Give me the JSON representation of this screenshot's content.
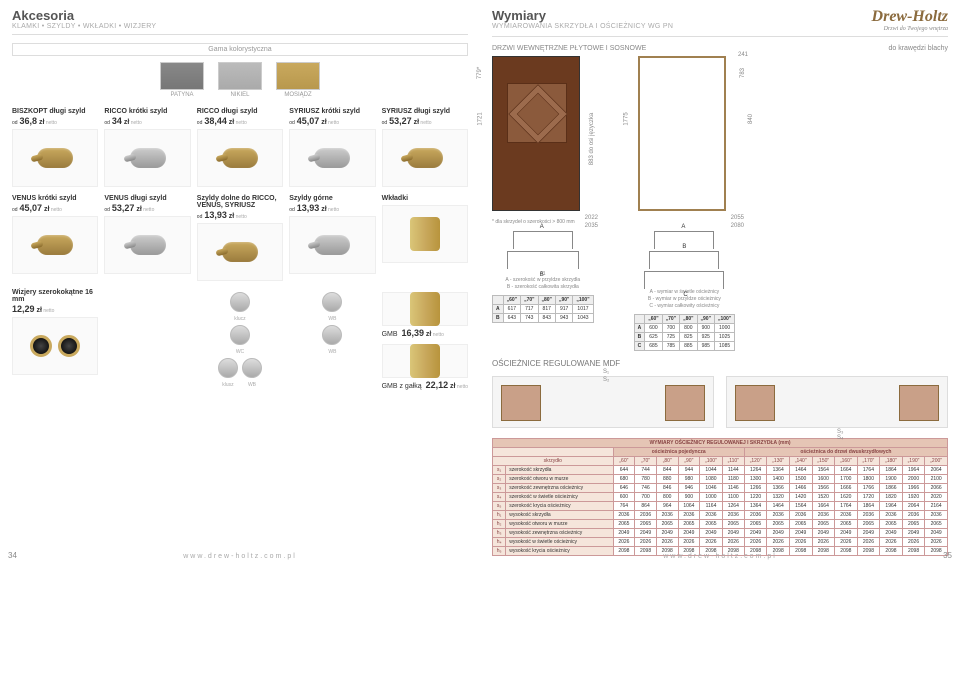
{
  "left": {
    "title": "Akcesoria",
    "sub": "KLAMKI • SZYLDY • WKŁADKI • WIZJERY",
    "gama": "Gama kolorystyczna",
    "swatches": [
      {
        "label": "PATYNA",
        "class": "patyna"
      },
      {
        "label": "NIKIEL",
        "class": "nikiel"
      },
      {
        "label": "MOSIĄDZ",
        "class": "mosiadz"
      }
    ],
    "products_row1": [
      {
        "name": "BISZKOPT długi szyld",
        "pre": "od",
        "val": "36,8",
        "curr": "zł"
      },
      {
        "name": "RICCO krótki szyld",
        "pre": "od",
        "val": "34",
        "curr": "zł"
      },
      {
        "name": "RICCO długi szyld",
        "pre": "od",
        "val": "38,44",
        "curr": "zł"
      },
      {
        "name": "SYRIUSZ krótki szyld",
        "pre": "od",
        "val": "45,07",
        "curr": "zł"
      },
      {
        "name": "SYRIUSZ długi szyld",
        "pre": "od",
        "val": "53,27",
        "curr": "zł"
      }
    ],
    "products_row2": [
      {
        "name": "VENUS krótki szyld",
        "pre": "od",
        "val": "45,07",
        "curr": "zł"
      },
      {
        "name": "VENUS długi szyld",
        "pre": "od",
        "val": "53,27",
        "curr": "zł"
      },
      {
        "name": "Szyldy dolne do RICCO, VENUS, SYRIUSZ",
        "pre": "od",
        "val": "13,93",
        "curr": "zł"
      },
      {
        "name": "Szyldy górne",
        "pre": "od",
        "val": "13,93",
        "curr": "zł"
      },
      {
        "name": "Wkładki",
        "pre": "",
        "val": "",
        "curr": ""
      }
    ],
    "mini_labels": {
      "klucz": "klucz",
      "wc": "WC",
      "wb": "WB",
      "klusz": "klusz"
    },
    "gmb": {
      "label": "GMB",
      "price": "16,39",
      "curr": "zł"
    },
    "gmbg": {
      "label": "GMB z gałką",
      "price": "22,12",
      "curr": "zł"
    },
    "wizjer": {
      "name": "Wizjery szerokokątne 16 mm",
      "price": "12,29",
      "curr": "zł"
    },
    "footer": "www.drew-holtz.com.pl",
    "pagenum": "34"
  },
  "right": {
    "title": "Wymiary",
    "sub": "WYMIAROWANIA SKRZYDŁA I OŚCIEŻNICY WG PN",
    "logo": {
      "big": "Drew-Holtz",
      "small": "Drzwi do Twojego wnętrza"
    },
    "drzwi_title": "DRZWI WEWNĘTRZNE PŁYTOWE I SOSNOWE",
    "krawedz": "do krawędzi blachy",
    "door_dims": {
      "h1": "1721",
      "h2": "779*",
      "h3": "883 do osi języczka",
      "w1": "2022",
      "w2": "2035"
    },
    "frame_dims": {
      "h1": "1775",
      "h2": "783",
      "h3": "241",
      "w1": "2055",
      "w2": "2080",
      "w3": "840"
    },
    "note": "* dla skrzydeł o szerokości > 800 mm",
    "ab_dim": "41",
    "legend_ab": [
      "A - szerokość w przyldze skrzydła",
      "B - szerokość całkowita skrzydła"
    ],
    "legend_abc": [
      "A - wymiar w świetle ościeżnicy",
      "B - wymiar w przyldze ościeżnicy",
      "C - wymiar całkowity ościeżnicy"
    ],
    "tbl_ab": {
      "cols": [
        "„60\"",
        "„70\"",
        "„80\"",
        "„90\"",
        "„100\""
      ],
      "rows": [
        {
          "lbl": "A",
          "vals": [
            "617",
            "717",
            "817",
            "917",
            "1017"
          ]
        },
        {
          "lbl": "B",
          "vals": [
            "643",
            "743",
            "843",
            "943",
            "1043"
          ]
        }
      ]
    },
    "tbl_abc": {
      "cols": [
        "„60\"",
        "„70\"",
        "„80\"",
        "„90\"",
        "„100\""
      ],
      "rows": [
        {
          "lbl": "A",
          "vals": [
            "600",
            "700",
            "800",
            "900",
            "1000"
          ]
        },
        {
          "lbl": "B",
          "vals": [
            "625",
            "725",
            "825",
            "925",
            "1025"
          ]
        },
        {
          "lbl": "C",
          "vals": [
            "685",
            "785",
            "885",
            "985",
            "1085"
          ]
        }
      ]
    },
    "mdf_title": "OŚCIEŻNICE REGULOWANE MDF",
    "mdf_s": [
      "S₁",
      "S₂",
      "S₃",
      "S₄"
    ],
    "big_table": {
      "title": "WYMIARY OŚCIEŻNICY REGULOWANEJ I SKRZYDŁA (mm)",
      "group1": "ościeżnica pojedyncza",
      "group2": "ościeżnica do drzwi dwuskrzydłowych",
      "head": [
        "skrzydło",
        "„60\"",
        "„70\"",
        "„80\"",
        "„90\"",
        "„100\"",
        "„110\"",
        "„120\"",
        "„130\"",
        "„140\"",
        "„150\"",
        "„160\"",
        "„170\"",
        "„180\"",
        "„190\"",
        "„200\""
      ],
      "rows": [
        {
          "k": "s₁",
          "lbl": "szerokość skrzydła",
          "vals": [
            "644",
            "744",
            "844",
            "944",
            "1044",
            "1144",
            "1264",
            "1364",
            "1464",
            "1564",
            "1664",
            "1764",
            "1864",
            "1964",
            "2064"
          ]
        },
        {
          "k": "s₂",
          "lbl": "szerokość otworu w murze",
          "vals": [
            "680",
            "780",
            "880",
            "980",
            "1080",
            "1180",
            "1300",
            "1400",
            "1500",
            "1600",
            "1700",
            "1800",
            "1900",
            "2000",
            "2100"
          ]
        },
        {
          "k": "s₃",
          "lbl": "szerokość zewnętrzna ościeżnicy",
          "vals": [
            "646",
            "746",
            "846",
            "946",
            "1046",
            "1146",
            "1266",
            "1366",
            "1466",
            "1566",
            "1666",
            "1766",
            "1866",
            "1966",
            "2066"
          ]
        },
        {
          "k": "s₄",
          "lbl": "szerokość w świetle ościeżnicy",
          "vals": [
            "600",
            "700",
            "800",
            "900",
            "1000",
            "1100",
            "1220",
            "1320",
            "1420",
            "1520",
            "1620",
            "1720",
            "1820",
            "1920",
            "2020"
          ]
        },
        {
          "k": "s₅",
          "lbl": "szerokość krycia ościeżnicy",
          "vals": [
            "764",
            "864",
            "964",
            "1064",
            "1164",
            "1264",
            "1364",
            "1464",
            "1564",
            "1664",
            "1764",
            "1864",
            "1964",
            "2064",
            "2164"
          ]
        },
        {
          "k": "h₁",
          "lbl": "wysokość skrzydła",
          "vals": [
            "2036",
            "2036",
            "2036",
            "2036",
            "2036",
            "2036",
            "2036",
            "2036",
            "2036",
            "2036",
            "2036",
            "2036",
            "2036",
            "2036",
            "2036"
          ]
        },
        {
          "k": "h₂",
          "lbl": "wysokość otworu w murze",
          "vals": [
            "2065",
            "2065",
            "2065",
            "2065",
            "2065",
            "2065",
            "2065",
            "2065",
            "2065",
            "2065",
            "2065",
            "2065",
            "2065",
            "2065",
            "2065"
          ]
        },
        {
          "k": "h₃",
          "lbl": "wysokość zewnętrzna ościeżnicy",
          "vals": [
            "2049",
            "2049",
            "2049",
            "2049",
            "2049",
            "2049",
            "2049",
            "2049",
            "2049",
            "2049",
            "2049",
            "2049",
            "2049",
            "2049",
            "2049"
          ]
        },
        {
          "k": "h₄",
          "lbl": "wysokość w świetle ościeżnicy",
          "vals": [
            "2026",
            "2026",
            "2026",
            "2026",
            "2026",
            "2026",
            "2026",
            "2026",
            "2026",
            "2026",
            "2026",
            "2026",
            "2026",
            "2026",
            "2026"
          ]
        },
        {
          "k": "h₅",
          "lbl": "wysokość krycia ościeżnicy",
          "vals": [
            "2098",
            "2098",
            "2098",
            "2098",
            "2098",
            "2098",
            "2098",
            "2098",
            "2098",
            "2098",
            "2098",
            "2098",
            "2098",
            "2098",
            "2098"
          ]
        }
      ]
    },
    "footer": "www.drew-holtz.com.pl",
    "pagenum": "35"
  }
}
